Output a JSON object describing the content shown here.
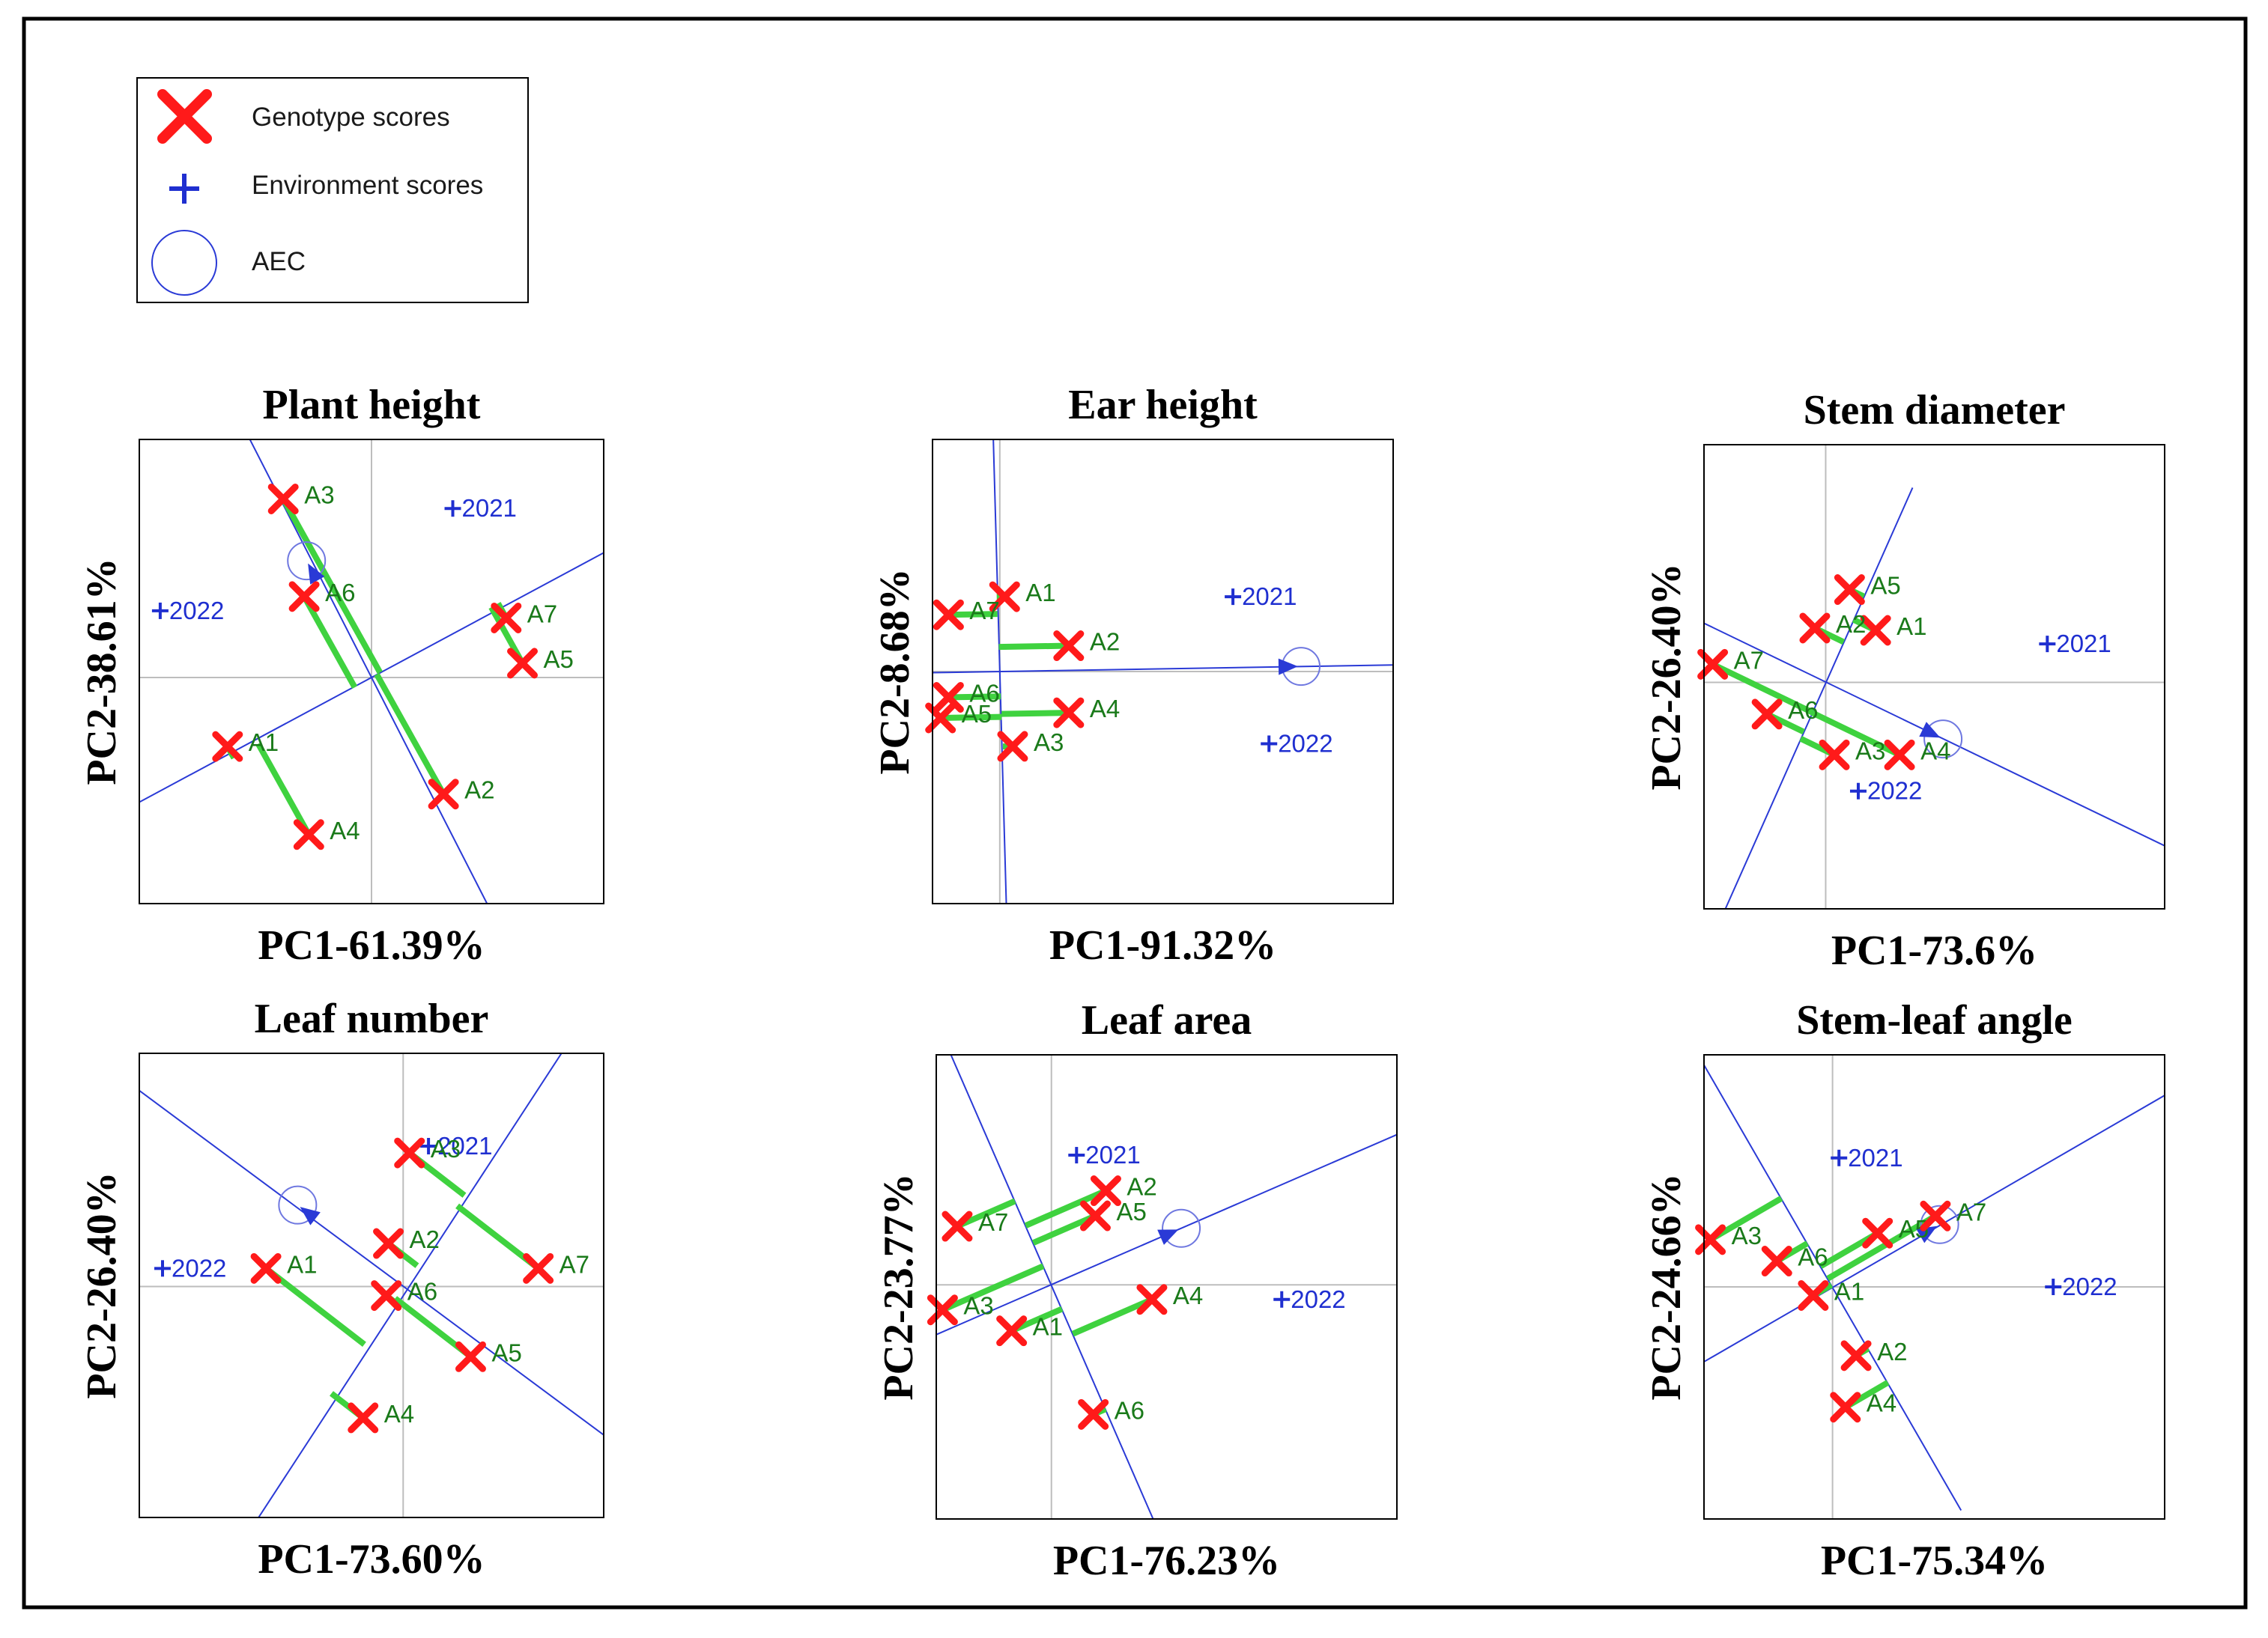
{
  "legend": {
    "genotype": "Genotype scores",
    "environment": "Environment scores",
    "aec": "AEC"
  },
  "colors": {
    "genotype": "#ff1a1a",
    "environment": "#1f2fd0",
    "projection": "#3fd23f",
    "axis": "#2a3ad6",
    "genotype_label": "#1a7a1a",
    "frame": "#000000",
    "crosshair": "#bdbdbd"
  },
  "chart_data": [
    {
      "type": "scatter",
      "title": "Plant height",
      "xlabel": "PC1-61.39%",
      "ylabel": "PC2-38.61%",
      "xlim": [
        -1.0,
        1.0
      ],
      "ylim": [
        -0.95,
        1.0
      ],
      "origin": [
        0,
        0
      ],
      "aec_point": [
        -0.28,
        0.49
      ],
      "aec_line": [
        [
          -0.55,
          1.05
        ],
        [
          0.55,
          -1.05
        ]
      ],
      "ortho_line": [
        [
          -1.05,
          -0.55
        ],
        [
          1.05,
          0.55
        ]
      ],
      "genotypes": [
        {
          "name": "A1",
          "x": -0.62,
          "y": -0.29
        },
        {
          "name": "A2",
          "x": 0.31,
          "y": -0.49
        },
        {
          "name": "A3",
          "x": -0.38,
          "y": 0.75
        },
        {
          "name": "A4",
          "x": -0.27,
          "y": -0.66
        },
        {
          "name": "A5",
          "x": 0.65,
          "y": 0.06
        },
        {
          "name": "A6",
          "x": -0.29,
          "y": 0.34
        },
        {
          "name": "A7",
          "x": 0.58,
          "y": 0.25
        }
      ],
      "environments": [
        {
          "name": "2021",
          "x": 0.35,
          "y": 0.71
        },
        {
          "name": "2022",
          "x": -0.91,
          "y": 0.28
        }
      ]
    },
    {
      "type": "scatter",
      "title": "Ear height",
      "xlabel": "PC1-91.32%",
      "ylabel": "PC2-8.68%",
      "xlim": [
        -0.15,
        1.0
      ],
      "ylim": [
        -0.9,
        0.9
      ],
      "origin": [
        0.018,
        0.0
      ],
      "aec_point": [
        0.77,
        0.02
      ],
      "aec_line": [
        [
          0.0,
          1.0
        ],
        [
          0.036,
          -1.0
        ]
      ],
      "ortho_line": [
        [
          -0.25,
          -0.007
        ],
        [
          1.1,
          0.028
        ]
      ],
      "genotypes": [
        {
          "name": "A1",
          "x": 0.03,
          "y": 0.29
        },
        {
          "name": "A2",
          "x": 0.19,
          "y": 0.1
        },
        {
          "name": "A3",
          "x": 0.05,
          "y": -0.29
        },
        {
          "name": "A4",
          "x": 0.19,
          "y": -0.16
        },
        {
          "name": "A5",
          "x": -0.13,
          "y": -0.18
        },
        {
          "name": "A6",
          "x": -0.11,
          "y": -0.1
        },
        {
          "name": "A7",
          "x": -0.11,
          "y": 0.22
        }
      ],
      "environments": [
        {
          "name": "2021",
          "x": 0.6,
          "y": 0.29
        },
        {
          "name": "2022",
          "x": 0.69,
          "y": -0.28
        }
      ]
    },
    {
      "type": "scatter",
      "title": "Stem diameter",
      "xlabel": "PC1-73.6%",
      "ylabel": "PC2-26.40%",
      "xlim": [
        -0.56,
        1.56
      ],
      "ylim": [
        -1.1,
        0.95
      ],
      "origin": [
        0.0,
        -0.1
      ],
      "aec_point": [
        0.54,
        -0.35
      ],
      "aec_line": [
        [
          -0.6,
          0.18
        ],
        [
          1.6,
          -0.84
        ]
      ],
      "ortho_line": [
        [
          -0.48,
          -1.14
        ],
        [
          0.4,
          0.76
        ]
      ],
      "genotypes": [
        {
          "name": "A1",
          "x": 0.23,
          "y": 0.13
        },
        {
          "name": "A2",
          "x": -0.05,
          "y": 0.14
        },
        {
          "name": "A3",
          "x": 0.04,
          "y": -0.42
        },
        {
          "name": "A4",
          "x": 0.34,
          "y": -0.42
        },
        {
          "name": "A5",
          "x": 0.11,
          "y": 0.31
        },
        {
          "name": "A6",
          "x": -0.27,
          "y": -0.24
        },
        {
          "name": "A7",
          "x": -0.52,
          "y": -0.02
        }
      ],
      "environments": [
        {
          "name": "2021",
          "x": 1.02,
          "y": 0.07
        },
        {
          "name": "2022",
          "x": 0.15,
          "y": -0.58
        }
      ]
    },
    {
      "type": "scatter",
      "title": "Leaf number",
      "xlabel": "PC1-73.60%",
      "ylabel": "PC2-26.40%",
      "xlim": [
        -1.25,
        0.95
      ],
      "ylim": [
        -1.05,
        1.0
      ],
      "origin": [
        0.0,
        -0.03
      ],
      "aec_point": [
        -0.5,
        0.33
      ],
      "aec_line": [
        [
          -1.3,
          0.87
        ],
        [
          1.0,
          -0.72
        ]
      ],
      "ortho_line": [
        [
          -0.79,
          -1.2
        ],
        [
          0.89,
          1.2
        ]
      ],
      "genotypes": [
        {
          "name": "A1",
          "x": -0.65,
          "y": 0.05
        },
        {
          "name": "A2",
          "x": -0.07,
          "y": 0.16
        },
        {
          "name": "A3",
          "x": 0.03,
          "y": 0.56
        },
        {
          "name": "A4",
          "x": -0.19,
          "y": -0.61
        },
        {
          "name": "A5",
          "x": 0.32,
          "y": -0.34
        },
        {
          "name": "A6",
          "x": -0.08,
          "y": -0.07
        },
        {
          "name": "A7",
          "x": 0.64,
          "y": 0.05
        }
      ],
      "environments": [
        {
          "name": "2021",
          "x": 0.12,
          "y": 0.59
        },
        {
          "name": "2022",
          "x": -1.14,
          "y": 0.05
        }
      ]
    },
    {
      "type": "scatter",
      "title": "Leaf area",
      "xlabel": "PC1-76.23%",
      "ylabel": "PC2-23.77%",
      "xlim": [
        -0.55,
        1.65
      ],
      "ylim": [
        -1.12,
        1.1
      ],
      "origin": [
        0.0,
        0.0
      ],
      "aec_point": [
        0.62,
        0.27
      ],
      "aec_line": [
        [
          -0.6,
          -0.26
        ],
        [
          1.7,
          0.74
        ]
      ],
      "ortho_line": [
        [
          -0.48,
          1.1
        ],
        [
          0.49,
          -1.13
        ]
      ],
      "genotypes": [
        {
          "name": "A1",
          "x": -0.19,
          "y": -0.22
        },
        {
          "name": "A2",
          "x": 0.26,
          "y": 0.45
        },
        {
          "name": "A3",
          "x": -0.52,
          "y": -0.12
        },
        {
          "name": "A4",
          "x": 0.48,
          "y": -0.07
        },
        {
          "name": "A5",
          "x": 0.21,
          "y": 0.33
        },
        {
          "name": "A6",
          "x": 0.2,
          "y": -0.62
        },
        {
          "name": "A7",
          "x": -0.45,
          "y": 0.28
        }
      ],
      "environments": [
        {
          "name": "2021",
          "x": 0.12,
          "y": 0.62
        },
        {
          "name": "2022",
          "x": 1.1,
          "y": -0.07
        }
      ]
    },
    {
      "type": "scatter",
      "title": "Stem-leaf angle",
      "xlabel": "PC1-75.34%",
      "ylabel": "PC2-24.66%",
      "xlim": [
        -0.6,
        1.55
      ],
      "ylim": [
        -1.08,
        1.08
      ],
      "origin": [
        0.0,
        0.0
      ],
      "aec_point": [
        0.5,
        0.29
      ],
      "aec_line": [
        [
          -0.62,
          -0.36
        ],
        [
          1.6,
          0.92
        ]
      ],
      "ortho_line": [
        [
          -0.61,
          1.05
        ],
        [
          0.6,
          -1.04
        ]
      ],
      "genotypes": [
        {
          "name": "A1",
          "x": -0.09,
          "y": -0.04
        },
        {
          "name": "A2",
          "x": 0.11,
          "y": -0.32
        },
        {
          "name": "A3",
          "x": -0.57,
          "y": 0.22
        },
        {
          "name": "A4",
          "x": 0.06,
          "y": -0.56
        },
        {
          "name": "A5",
          "x": 0.21,
          "y": 0.25
        },
        {
          "name": "A6",
          "x": -0.26,
          "y": 0.12
        },
        {
          "name": "A7",
          "x": 0.48,
          "y": 0.33
        }
      ],
      "environments": [
        {
          "name": "2021",
          "x": 0.03,
          "y": 0.6
        },
        {
          "name": "2022",
          "x": 1.03,
          "y": 0.0
        }
      ]
    }
  ]
}
